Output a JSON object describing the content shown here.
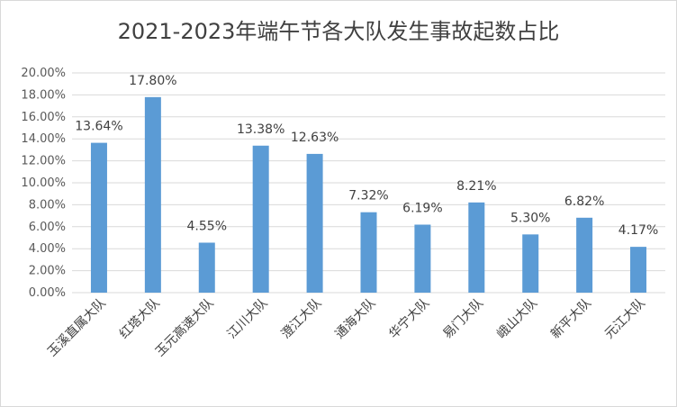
{
  "chart_data": {
    "type": "bar",
    "title": "2021-2023年端午节各大队发生事故起数占比",
    "categories": [
      "玉溪直属大队",
      "红塔大队",
      "玉元高速大队",
      "江川大队",
      "澄江大队",
      "通海大队",
      "华宁大队",
      "易门大队",
      "峨山大队",
      "新平大队",
      "元江大队"
    ],
    "values": [
      13.64,
      17.8,
      4.55,
      13.38,
      12.63,
      7.32,
      6.19,
      8.21,
      5.3,
      6.82,
      4.17
    ],
    "data_labels": [
      "13.64%",
      "17.80%",
      "4.55%",
      "13.38%",
      "12.63%",
      "7.32%",
      "6.19%",
      "8.21%",
      "5.30%",
      "6.82%",
      "4.17%"
    ],
    "ylim": [
      0,
      20
    ],
    "y_ticks": [
      "0.00%",
      "2.00%",
      "4.00%",
      "6.00%",
      "8.00%",
      "10.00%",
      "12.00%",
      "14.00%",
      "16.00%",
      "18.00%",
      "20.00%"
    ],
    "xlabel": "",
    "ylabel": "",
    "grid": true,
    "bar_color": "#5b9bd5",
    "grid_color": "#d9d9d9"
  }
}
